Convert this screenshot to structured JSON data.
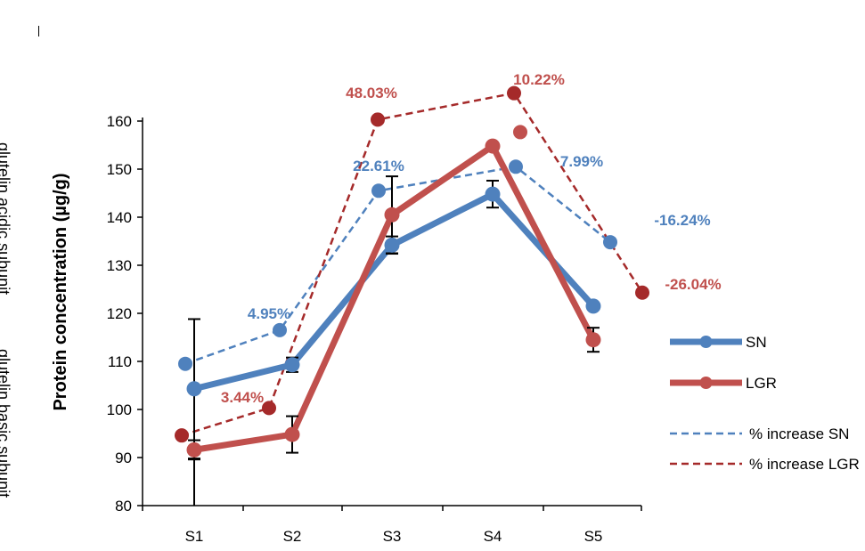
{
  "chart_data": {
    "type": "line",
    "categories": [
      "S1",
      "S2",
      "S3",
      "S4",
      "S5"
    ],
    "ylabel": "Protein concentration (µg/g)",
    "ylim": [
      80,
      160
    ],
    "yticks": [
      80,
      90,
      100,
      110,
      120,
      130,
      140,
      150,
      160
    ],
    "side_labels": [
      "glutelin acidic subunit",
      "glutelin basic subunit"
    ],
    "colors": {
      "SN": "#4f81bd",
      "LGR": "#c0504d",
      "pct_SN": "#4f81bd",
      "pct_LGR": "#a52a2a"
    },
    "series": [
      {
        "name": "SN",
        "style": "solid",
        "values": [
          104.3,
          109.3,
          134.2,
          144.8,
          121.5
        ],
        "errors": [
          14.5,
          1.5,
          1.8,
          2.8,
          0
        ]
      },
      {
        "name": "LGR",
        "style": "solid",
        "values": [
          91.6,
          94.8,
          140.5,
          154.8,
          114.5
        ],
        "errors": [
          2.0,
          3.8,
          8.0,
          0,
          2.5
        ]
      },
      {
        "name": "% increase SN",
        "style": "dashed",
        "values": [
          109.5,
          116.5,
          145.5,
          150.5,
          134.8
        ]
      },
      {
        "name": "% increase LGR",
        "style": "dashed",
        "values": [
          94.6,
          100.3,
          160.3,
          165.8,
          124.3
        ]
      }
    ],
    "secondary_points": [
      {
        "series": "% increase LGR",
        "category": "S4",
        "value": 157.7
      }
    ],
    "annotations": [
      {
        "text": "4.95%",
        "series": "% increase SN"
      },
      {
        "text": "22.61%",
        "series": "% increase SN"
      },
      {
        "text": "7.99%",
        "series": "% increase SN"
      },
      {
        "text": "-16.24%",
        "series": "% increase SN"
      },
      {
        "text": "3.44%",
        "series": "% increase LGR"
      },
      {
        "text": "48.03%",
        "series": "% increase LGR"
      },
      {
        "text": "10.22%",
        "series": "% increase LGR"
      },
      {
        "text": "-26.04%",
        "series": "% increase LGR"
      }
    ],
    "legend": {
      "placement": "right",
      "entries": [
        "SN",
        "LGR",
        "% increase SN",
        "% increase LGR"
      ]
    },
    "grid": false
  }
}
